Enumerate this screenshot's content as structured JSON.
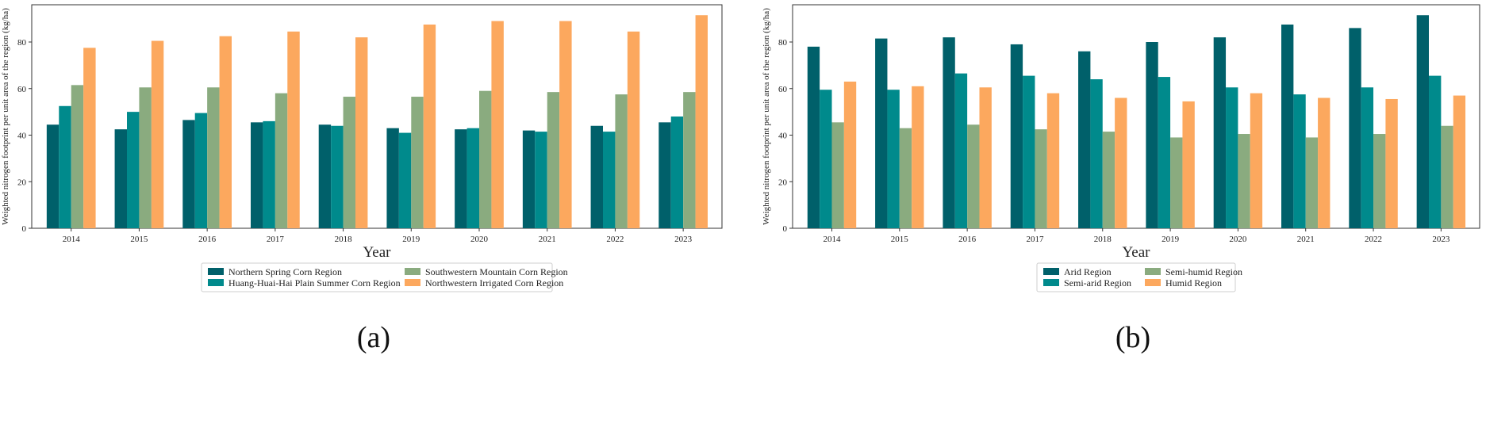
{
  "chart_data": [
    {
      "type": "bar",
      "panel_label": "(a)",
      "title": "",
      "xlabel": "Year",
      "ylabel": "Weighted nitrogen footprint per unit area of the region (kg/ha)",
      "ylim": [
        0,
        96
      ],
      "yticks": [
        0,
        20,
        40,
        60,
        80
      ],
      "categories": [
        "2014",
        "2015",
        "2016",
        "2017",
        "2018",
        "2019",
        "2020",
        "2021",
        "2022",
        "2023"
      ],
      "series": [
        {
          "name": "Northern Spring Corn Region",
          "color": "#00606a",
          "values": [
            44.5,
            42.5,
            46.5,
            45.5,
            44.5,
            43.0,
            42.5,
            42.0,
            44.0,
            45.5
          ]
        },
        {
          "name": "Huang-Huai-Hai Plain Summer Corn Region",
          "color": "#008a8c",
          "values": [
            52.5,
            50.0,
            49.5,
            46.0,
            44.0,
            41.0,
            43.0,
            41.5,
            41.5,
            48.0
          ]
        },
        {
          "name": "Southwestern Mountain Corn Region",
          "color": "#8aab7f",
          "values": [
            61.5,
            60.5,
            60.5,
            58.0,
            56.5,
            56.5,
            59.0,
            58.5,
            57.5,
            58.5
          ]
        },
        {
          "name": "Northwestern Irrigated Corn Region",
          "color": "#fca85e",
          "values": [
            77.5,
            80.5,
            82.5,
            84.5,
            82.0,
            87.5,
            89.0,
            89.0,
            84.5,
            91.5
          ]
        }
      ],
      "legend": {
        "position": "bottom-center",
        "columns": 2
      }
    },
    {
      "type": "bar",
      "panel_label": "(b)",
      "title": "",
      "xlabel": "Year",
      "ylabel": "Weighted nitrogen footprint per unit area of the region (kg/ha)",
      "ylim": [
        0,
        96
      ],
      "yticks": [
        0,
        20,
        40,
        60,
        80
      ],
      "categories": [
        "2014",
        "2015",
        "2016",
        "2017",
        "2018",
        "2019",
        "2020",
        "2021",
        "2022",
        "2023"
      ],
      "series": [
        {
          "name": "Arid Region",
          "color": "#00606a",
          "values": [
            78.0,
            81.5,
            82.0,
            79.0,
            76.0,
            80.0,
            82.0,
            87.5,
            86.0,
            91.5
          ]
        },
        {
          "name": "Semi-arid Region",
          "color": "#008a8c",
          "values": [
            59.5,
            59.5,
            66.5,
            65.5,
            64.0,
            65.0,
            60.5,
            57.5,
            60.5,
            65.5
          ]
        },
        {
          "name": "Semi-humid Region",
          "color": "#8aab7f",
          "values": [
            45.5,
            43.0,
            44.5,
            42.5,
            41.5,
            39.0,
            40.5,
            39.0,
            40.5,
            44.0
          ]
        },
        {
          "name": "Humid Region",
          "color": "#fca85e",
          "values": [
            63.0,
            61.0,
            60.5,
            58.0,
            56.0,
            54.5,
            58.0,
            56.0,
            55.5,
            57.0
          ]
        }
      ],
      "legend": {
        "position": "bottom-center",
        "columns": 2
      }
    }
  ]
}
